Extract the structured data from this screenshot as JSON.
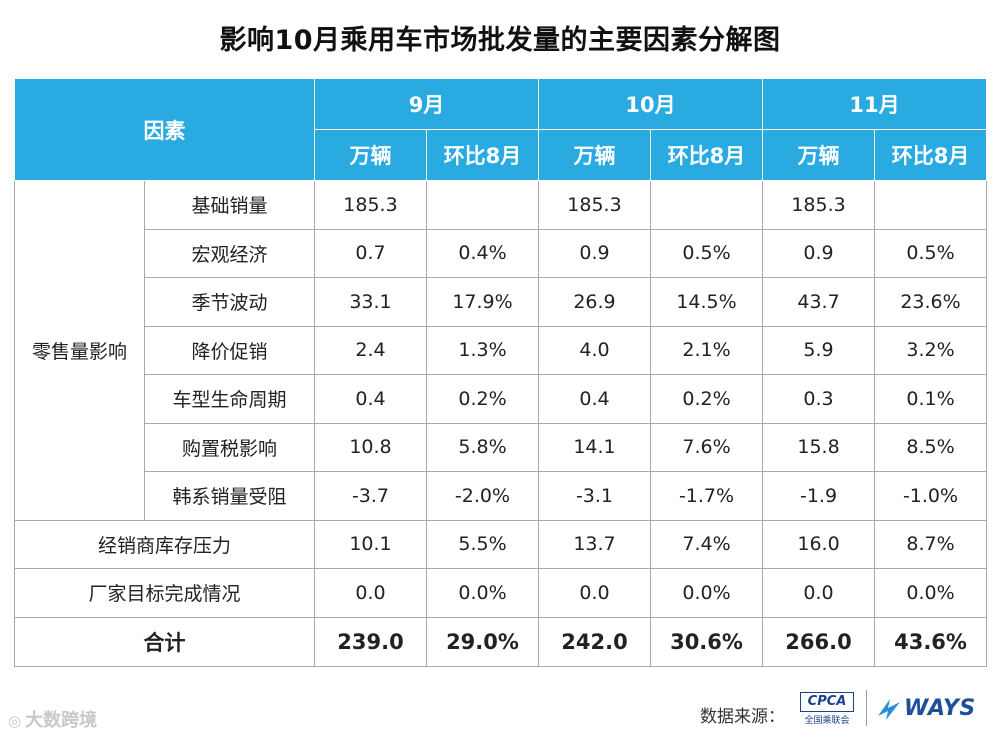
{
  "title": "影响10月乘用车市场批发量的主要因素分解图",
  "header": {
    "factor_label": "因素",
    "months": [
      "9月",
      "10月",
      "11月"
    ],
    "unit_label": "万辆",
    "ratio_label": "环比8月"
  },
  "rows": {
    "retail_group_label": "零售量影响",
    "retail": [
      {
        "label": "基础销量",
        "v": [
          "185.3",
          "",
          "185.3",
          "",
          "185.3",
          ""
        ]
      },
      {
        "label": "宏观经济",
        "v": [
          "0.7",
          "0.4%",
          "0.9",
          "0.5%",
          "0.9",
          "0.5%"
        ]
      },
      {
        "label": "季节波动",
        "v": [
          "33.1",
          "17.9%",
          "26.9",
          "14.5%",
          "43.7",
          "23.6%"
        ]
      },
      {
        "label": "降价促销",
        "v": [
          "2.4",
          "1.3%",
          "4.0",
          "2.1%",
          "5.9",
          "3.2%"
        ]
      },
      {
        "label": "车型生命周期",
        "v": [
          "0.4",
          "0.2%",
          "0.4",
          "0.2%",
          "0.3",
          "0.1%"
        ]
      },
      {
        "label": "购置税影响",
        "v": [
          "10.8",
          "5.8%",
          "14.1",
          "7.6%",
          "15.8",
          "8.5%"
        ]
      },
      {
        "label": "韩系销量受阻",
        "v": [
          "-3.7",
          "-2.0%",
          "-3.1",
          "-1.7%",
          "-1.9",
          "-1.0%"
        ]
      }
    ],
    "dealer": {
      "label": "经销商库存压力",
      "v": [
        "10.1",
        "5.5%",
        "13.7",
        "7.4%",
        "16.0",
        "8.7%"
      ]
    },
    "maker": {
      "label": "厂家目标完成情况",
      "v": [
        "0.0",
        "0.0%",
        "0.0",
        "0.0%",
        "0.0",
        "0.0%"
      ]
    },
    "total": {
      "label": "合计",
      "v": [
        "239.0",
        "29.0%",
        "242.0",
        "30.6%",
        "266.0",
        "43.6%"
      ]
    }
  },
  "footer": {
    "source_label": "数据来源：",
    "cpca_logo_text": "CPCA",
    "cpca_logo_sub": "全国乘联会",
    "ways_logo_text": "WAYS"
  },
  "watermark": {
    "text": "大数跨境"
  },
  "colors": {
    "header_bg": "#29abe2",
    "border": "#a9a9a9",
    "logo_blue": "#1f4e9c"
  }
}
